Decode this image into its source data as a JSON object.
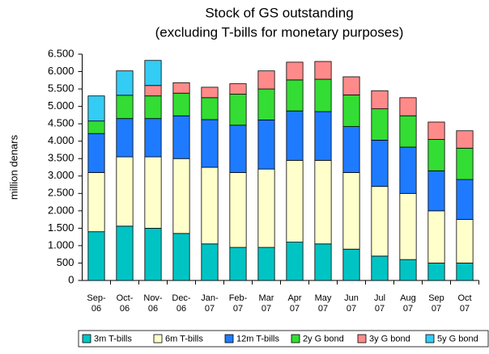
{
  "chart_data": {
    "type": "stacked_bar",
    "title": "Stock of GS outstanding",
    "subtitle": "(excluding T-bills for monetary purposes)",
    "y_label": "million denars",
    "categories": [
      [
        "Sep-",
        "06"
      ],
      [
        "Oct-",
        "06"
      ],
      [
        "Nov-",
        "06"
      ],
      [
        "Dec-",
        "06"
      ],
      [
        "Jan-",
        "07"
      ],
      [
        "Feb-",
        "07"
      ],
      [
        "Mar",
        "07"
      ],
      [
        "Apr",
        "07"
      ],
      [
        "May",
        "07"
      ],
      [
        "Jun",
        "07"
      ],
      [
        "Jul",
        "07"
      ],
      [
        "Aug",
        "07"
      ],
      [
        "Sep",
        "07"
      ],
      [
        "Oct",
        "07"
      ]
    ],
    "series": [
      {
        "name": "3m T-bills",
        "color": "#00c4c4",
        "values": [
          1400,
          1560,
          1500,
          1350,
          1050,
          950,
          950,
          1100,
          1050,
          900,
          700,
          600,
          500,
          500
        ]
      },
      {
        "name": "6m T-bills",
        "color": "#ffffcc",
        "values": [
          1700,
          1990,
          2050,
          2150,
          2200,
          2150,
          2250,
          2350,
          2400,
          2200,
          2000,
          1900,
          1500,
          1250
        ]
      },
      {
        "name": "12m T-bills",
        "color": "#1e7bff",
        "values": [
          1120,
          1100,
          1100,
          1230,
          1370,
          1360,
          1410,
          1420,
          1400,
          1320,
          1330,
          1330,
          1150,
          1150
        ]
      },
      {
        "name": "2y G bond",
        "color": "#33dd33",
        "values": [
          360,
          670,
          650,
          650,
          630,
          890,
          890,
          890,
          930,
          910,
          900,
          900,
          900,
          900
        ]
      },
      {
        "name": "3y G bond",
        "color": "#ff8a8a",
        "values": [
          0,
          0,
          300,
          300,
          300,
          300,
          520,
          510,
          510,
          520,
          520,
          520,
          500,
          500
        ]
      },
      {
        "name": "5y G bond",
        "color": "#33ccf4",
        "values": [
          720,
          700,
          720,
          0,
          0,
          0,
          0,
          0,
          0,
          0,
          0,
          0,
          0,
          0
        ]
      }
    ],
    "ylim": [
      0,
      6500
    ],
    "yticks": [
      0,
      500,
      {
        "value": 1000,
        "label": "1.000"
      },
      {
        "value": 1500,
        "label": "1.500"
      },
      {
        "value": 2000,
        "label": "2.000"
      },
      {
        "value": 2500,
        "label": "2.500"
      },
      {
        "value": 3000,
        "label": "3.000"
      },
      {
        "value": 3500,
        "label": "3.500"
      },
      {
        "value": 4000,
        "label": "4.000"
      },
      {
        "value": 4500,
        "label": "4.500"
      },
      {
        "value": 5000,
        "label": "5.000"
      },
      {
        "value": 5500,
        "label": "5.500"
      },
      {
        "value": 6000,
        "label": "6.000"
      },
      {
        "value": 6500,
        "label": "6.500"
      }
    ],
    "grid": false,
    "legend": "bottom"
  }
}
